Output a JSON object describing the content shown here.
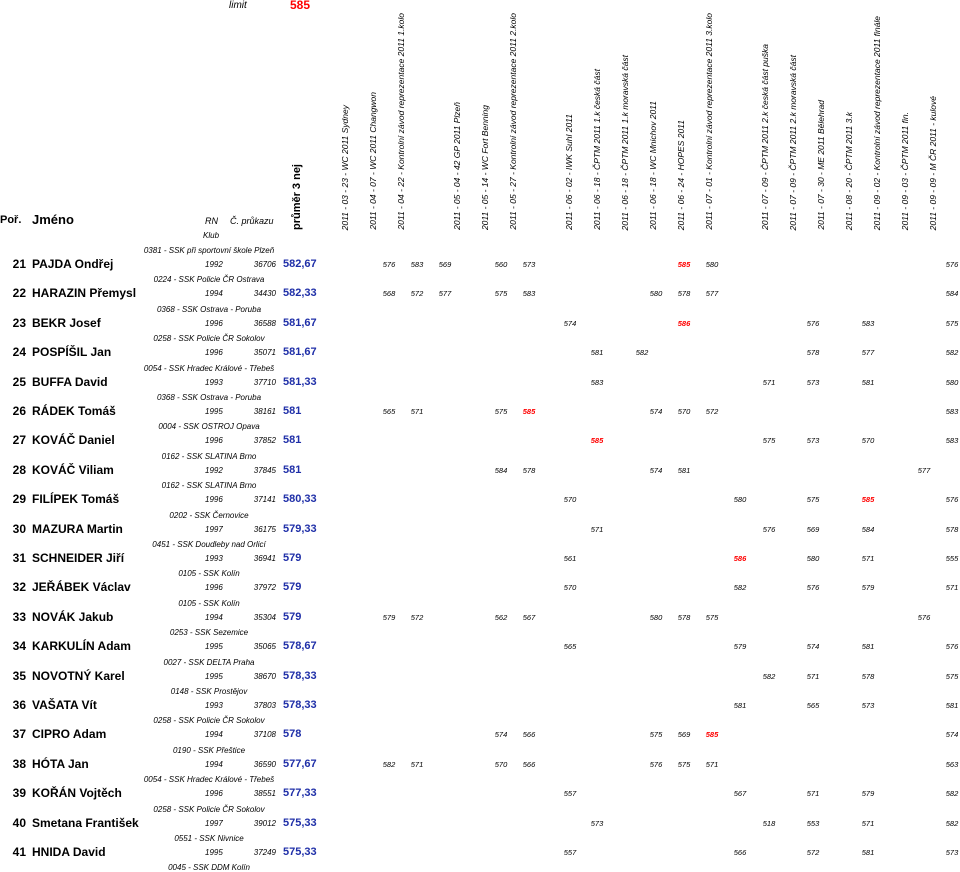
{
  "limit": {
    "label": "limit",
    "value": "585"
  },
  "headers": {
    "por": "Poř.",
    "jmeno": "Jméno",
    "rn": "RN",
    "cislo": "Č. průkazu",
    "klub": "Klub",
    "prumer": "průměr 3 nej"
  },
  "competitions": [
    "2011 - 03 - 23 - WC 2011 Sydney",
    "2011 - 04 - 07 - WC 2011 Changwon",
    "2011 - 04 - 22 - Kontrolní závod reprezentace 2011 1.kolo",
    "2011 - 05 - 04 - 42 GP 2011 Plzeň",
    "2011 - 05 - 14 - WC Fort Benning",
    "2011 - 05 - 27 - Kontrolní závod reprezentace 2011 2.kolo",
    "2011 - 06 - 02 - IWK Suhl 2011",
    "2011 - 06 - 18 - ČPTM 2011 1.k česká část",
    "2011 - 06 - 18 - ČPTM 2011 1.k moravská část",
    "2011 - 06 - 18 - WC Mnichov 2011",
    "2011 - 06 - 24 - HOPES 2011",
    "2011 - 07 - 01 - Kontrolní závod reprezentace 2011 3.kolo",
    "2011 - 07 - 09 - ČPTM 2011 2.k česká část puška",
    "2011 - 07 - 09 - ČPTM 2011 2.k moravská část",
    "2011 - 07 - 30 - ME 2011 Bělehrad",
    "2011 - 08 - 20 - ČPTM 2011 3.k",
    "2011 - 09 - 02 - Kontrolní závod reprezentace 2011 finále",
    "2011 - 09 - 03 - ČPTM 2011 fin.",
    "2011 - 09 - 09 - M ČR 2011 - kulové"
  ],
  "clubs_before": [
    "0381 - SSK při sportovní škole Plzeň",
    "0224 - SSK Policie ČR Ostrava",
    "0368 - SSK Ostrava - Poruba",
    "0258 - SSK Policie ČR Sokolov",
    "0054 - SSK Hradec Králové - Třebeš",
    "0368 - SSK Ostrava - Poruba",
    "0004 - SSK OSTROJ Opava",
    "0162 - SSK SLATINA Brno",
    "0162 - SSK SLATINA Brno",
    "0202 - SSK Černovice",
    "0451 - SSK Doudleby nad Orlicí",
    "0105 - SSK Kolín",
    "0105 - SSK Kolín",
    "0253 - SSK Sezemice",
    "0027 - SSK DELTA Praha",
    "0148 - SSK Prostějov",
    "0258 - SSK Policie ČR Sokolov",
    "0190 - SSK Přeštice",
    "0054 - SSK Hradec Králové - Třebeš",
    "0258 - SSK Policie ČR Sokolov",
    "0551 - SSK Nivnice",
    "0045 - SSK DDM Kolín"
  ],
  "rows": [
    {
      "rank": "21",
      "name": "PAJDA Ondřej",
      "rn": "1992",
      "cislo": "36706",
      "avg": "582,67",
      "scores": [
        {
          "c": 2,
          "v": "576"
        },
        {
          "c": 3,
          "v": "583"
        },
        {
          "c": 4,
          "v": "569"
        },
        {
          "c": 5,
          "v": "560"
        },
        {
          "c": 6,
          "v": "573"
        },
        {
          "c": 11,
          "v": "585",
          "red": true
        },
        {
          "c": 12,
          "v": "580"
        },
        {
          "c": 19,
          "v": "576"
        }
      ]
    },
    {
      "rank": "22",
      "name": "HARAZIN Přemysl",
      "rn": "1994",
      "cislo": "34430",
      "avg": "582,33",
      "scores": [
        {
          "c": 2,
          "v": "568"
        },
        {
          "c": 3,
          "v": "572"
        },
        {
          "c": 4,
          "v": "577"
        },
        {
          "c": 5,
          "v": "575"
        },
        {
          "c": 6,
          "v": "583"
        },
        {
          "c": 10,
          "v": "580"
        },
        {
          "c": 11,
          "v": "578"
        },
        {
          "c": 12,
          "v": "577"
        },
        {
          "c": 20,
          "v": "584"
        }
      ]
    },
    {
      "rank": "23",
      "name": "BEKR Josef",
      "rn": "1996",
      "cislo": "36588",
      "avg": "581,67",
      "scores": [
        {
          "c": 7,
          "v": "574"
        },
        {
          "c": 11,
          "v": "586",
          "red": true
        },
        {
          "c": 15,
          "v": "576"
        },
        {
          "c": 17,
          "v": "583"
        },
        {
          "c": 19,
          "v": "575"
        }
      ]
    },
    {
      "rank": "24",
      "name": "POSPÍŠIL Jan",
      "rn": "1996",
      "cislo": "35071",
      "avg": "581,67",
      "scores": [
        {
          "c": 8,
          "v": "581"
        },
        {
          "c": 9,
          "v": "582"
        },
        {
          "c": 15,
          "v": "578"
        },
        {
          "c": 17,
          "v": "577"
        },
        {
          "c": 19,
          "v": "582"
        }
      ]
    },
    {
      "rank": "25",
      "name": "BUFFA David",
      "rn": "1993",
      "cislo": "37710",
      "avg": "581,33",
      "scores": [
        {
          "c": 8,
          "v": "583"
        },
        {
          "c": 14,
          "v": "571"
        },
        {
          "c": 15,
          "v": "573"
        },
        {
          "c": 17,
          "v": "581"
        },
        {
          "c": 19,
          "v": "580"
        }
      ]
    },
    {
      "rank": "26",
      "name": "RÁDEK Tomáš",
      "rn": "1995",
      "cislo": "38161",
      "avg": "581",
      "scores": [
        {
          "c": 2,
          "v": "565"
        },
        {
          "c": 3,
          "v": "571"
        },
        {
          "c": 5,
          "v": "575"
        },
        {
          "c": 6,
          "v": "585",
          "red": true
        },
        {
          "c": 10,
          "v": "574"
        },
        {
          "c": 11,
          "v": "570"
        },
        {
          "c": 12,
          "v": "572"
        },
        {
          "c": 19,
          "v": "583"
        }
      ]
    },
    {
      "rank": "27",
      "name": "KOVÁČ Daniel",
      "rn": "1996",
      "cislo": "37852",
      "avg": "581",
      "scores": [
        {
          "c": 8,
          "v": "585",
          "red": true
        },
        {
          "c": 14,
          "v": "575"
        },
        {
          "c": 15,
          "v": "573"
        },
        {
          "c": 17,
          "v": "570"
        },
        {
          "c": 19,
          "v": "583"
        }
      ]
    },
    {
      "rank": "28",
      "name": "KOVÁČ Viliam",
      "rn": "1992",
      "cislo": "37845",
      "avg": "581",
      "scores": [
        {
          "c": 5,
          "v": "584"
        },
        {
          "c": 6,
          "v": "578"
        },
        {
          "c": 10,
          "v": "574"
        },
        {
          "c": 11,
          "v": "581"
        },
        {
          "c": 18,
          "v": "577"
        }
      ]
    },
    {
      "rank": "29",
      "name": "FILÍPEK Tomáš",
      "rn": "1996",
      "cislo": "37141",
      "avg": "580,33",
      "scores": [
        {
          "c": 7,
          "v": "570"
        },
        {
          "c": 13,
          "v": "580"
        },
        {
          "c": 15,
          "v": "575"
        },
        {
          "c": 17,
          "v": "585",
          "red": true
        },
        {
          "c": 19,
          "v": "576"
        }
      ]
    },
    {
      "rank": "30",
      "name": "MAZURA Martin",
      "rn": "1997",
      "cislo": "36175",
      "avg": "579,33",
      "scores": [
        {
          "c": 8,
          "v": "571"
        },
        {
          "c": 14,
          "v": "576"
        },
        {
          "c": 15,
          "v": "569"
        },
        {
          "c": 17,
          "v": "584"
        },
        {
          "c": 19,
          "v": "578"
        }
      ]
    },
    {
      "rank": "31",
      "name": "SCHNEIDER Jiří",
      "rn": "1993",
      "cislo": "36941",
      "avg": "579",
      "scores": [
        {
          "c": 7,
          "v": "561"
        },
        {
          "c": 13,
          "v": "586",
          "red": true
        },
        {
          "c": 15,
          "v": "580"
        },
        {
          "c": 17,
          "v": "571"
        },
        {
          "c": 19,
          "v": "555"
        }
      ]
    },
    {
      "rank": "32",
      "name": "JEŘÁBEK Václav",
      "rn": "1996",
      "cislo": "37972",
      "avg": "579",
      "scores": [
        {
          "c": 7,
          "v": "570"
        },
        {
          "c": 13,
          "v": "582"
        },
        {
          "c": 15,
          "v": "576"
        },
        {
          "c": 17,
          "v": "579"
        },
        {
          "c": 19,
          "v": "571"
        }
      ]
    },
    {
      "rank": "33",
      "name": "NOVÁK Jakub",
      "rn": "1994",
      "cislo": "35304",
      "avg": "579",
      "scores": [
        {
          "c": 2,
          "v": "579"
        },
        {
          "c": 3,
          "v": "572"
        },
        {
          "c": 5,
          "v": "562"
        },
        {
          "c": 6,
          "v": "567"
        },
        {
          "c": 10,
          "v": "580"
        },
        {
          "c": 11,
          "v": "578"
        },
        {
          "c": 12,
          "v": "575"
        },
        {
          "c": 18,
          "v": "576"
        }
      ]
    },
    {
      "rank": "34",
      "name": "KARKULÍN Adam",
      "rn": "1995",
      "cislo": "35065",
      "avg": "578,67",
      "scores": [
        {
          "c": 7,
          "v": "565"
        },
        {
          "c": 13,
          "v": "579"
        },
        {
          "c": 15,
          "v": "574"
        },
        {
          "c": 17,
          "v": "581"
        },
        {
          "c": 19,
          "v": "576"
        }
      ]
    },
    {
      "rank": "35",
      "name": "NOVOTNÝ Karel",
      "rn": "1995",
      "cislo": "38670",
      "avg": "578,33",
      "scores": [
        {
          "c": 14,
          "v": "582"
        },
        {
          "c": 15,
          "v": "571"
        },
        {
          "c": 17,
          "v": "578"
        },
        {
          "c": 19,
          "v": "575"
        }
      ]
    },
    {
      "rank": "36",
      "name": "VAŠATA Vít",
      "rn": "1993",
      "cislo": "37803",
      "avg": "578,33",
      "scores": [
        {
          "c": 13,
          "v": "581"
        },
        {
          "c": 15,
          "v": "565"
        },
        {
          "c": 17,
          "v": "573"
        },
        {
          "c": 19,
          "v": "581"
        }
      ]
    },
    {
      "rank": "37",
      "name": "CIPRO Adam",
      "rn": "1994",
      "cislo": "37108",
      "avg": "578",
      "scores": [
        {
          "c": 5,
          "v": "574"
        },
        {
          "c": 6,
          "v": "566"
        },
        {
          "c": 10,
          "v": "575"
        },
        {
          "c": 11,
          "v": "569"
        },
        {
          "c": 12,
          "v": "585",
          "red": true
        },
        {
          "c": 19,
          "v": "574"
        }
      ]
    },
    {
      "rank": "38",
      "name": "HÓTA Jan",
      "rn": "1994",
      "cislo": "36590",
      "avg": "577,67",
      "scores": [
        {
          "c": 2,
          "v": "582"
        },
        {
          "c": 3,
          "v": "571"
        },
        {
          "c": 5,
          "v": "570"
        },
        {
          "c": 6,
          "v": "566"
        },
        {
          "c": 10,
          "v": "576"
        },
        {
          "c": 11,
          "v": "575"
        },
        {
          "c": 12,
          "v": "571"
        },
        {
          "c": 19,
          "v": "563"
        }
      ]
    },
    {
      "rank": "39",
      "name": "KOŘÁN Vojtěch",
      "rn": "1996",
      "cislo": "38551",
      "avg": "577,33",
      "scores": [
        {
          "c": 7,
          "v": "557"
        },
        {
          "c": 13,
          "v": "567"
        },
        {
          "c": 15,
          "v": "571"
        },
        {
          "c": 17,
          "v": "579"
        },
        {
          "c": 19,
          "v": "582"
        }
      ]
    },
    {
      "rank": "40",
      "name": "Smetana František",
      "rn": "1997",
      "cislo": "39012",
      "avg": "575,33",
      "scores": [
        {
          "c": 8,
          "v": "573"
        },
        {
          "c": 14,
          "v": "518"
        },
        {
          "c": 15,
          "v": "553"
        },
        {
          "c": 17,
          "v": "571"
        },
        {
          "c": 19,
          "v": "582"
        }
      ]
    },
    {
      "rank": "41",
      "name": "HNIDA David",
      "rn": "1995",
      "cislo": "37249",
      "avg": "575,33",
      "scores": [
        {
          "c": 7,
          "v": "557"
        },
        {
          "c": 13,
          "v": "566"
        },
        {
          "c": 15,
          "v": "572"
        },
        {
          "c": 17,
          "v": "581"
        },
        {
          "c": 19,
          "v": "573"
        }
      ]
    }
  ]
}
